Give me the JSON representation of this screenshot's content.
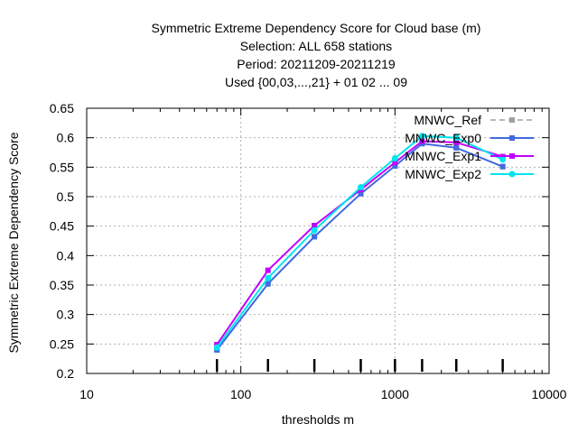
{
  "chart_data": {
    "type": "line",
    "title_lines": [
      "Symmetric Extreme Dependency Score  for Cloud base (m)",
      "Selection: ALL    658 stations",
      "Period: 20211209-20211219",
      "Used {00,03,...,21} + 01 02 ... 09"
    ],
    "xlabel": "thresholds m",
    "ylabel": "Symmetric Extreme Dependency Score",
    "x_scale": "log",
    "xlim": [
      10,
      10000
    ],
    "ylim": [
      0.2,
      0.65
    ],
    "x_ticks": [
      10,
      100,
      1000,
      10000
    ],
    "x_tick_labels": [
      "10",
      "100",
      "1000",
      "10000"
    ],
    "y_ticks": [
      0.2,
      0.25,
      0.3,
      0.35,
      0.4,
      0.45,
      0.5,
      0.55,
      0.6,
      0.65
    ],
    "y_tick_labels": [
      "0.2",
      "0.25",
      "0.3",
      "0.35",
      "0.4",
      "0.45",
      "0.5",
      "0.55",
      "0.6",
      "0.65"
    ],
    "grid": true,
    "legend_position": "top-right",
    "threshold_markers": [
      70,
      150,
      300,
      600,
      1000,
      1500,
      2500,
      5000
    ],
    "x": [
      70,
      150,
      300,
      600,
      1000,
      1500,
      2500,
      5000
    ],
    "series": [
      {
        "name": "MNWC_Ref",
        "color": "#a0a0a0",
        "dash": "dashed",
        "values": [
          0.24,
          0.353,
          0.432,
          0.505,
          0.552,
          0.59,
          0.583,
          0.551
        ]
      },
      {
        "name": "MNWC_Exp0",
        "color": "#4169e1",
        "dash": "solid",
        "values": [
          0.24,
          0.352,
          0.432,
          0.505,
          0.552,
          0.59,
          0.583,
          0.551
        ]
      },
      {
        "name": "MNWC_Exp1",
        "color": "#c000ff",
        "dash": "solid",
        "values": [
          0.249,
          0.375,
          0.451,
          0.512,
          0.558,
          0.594,
          0.592,
          0.568
        ]
      },
      {
        "name": "MNWC_Exp2",
        "color": "#00e5ee",
        "dash": "solid",
        "values": [
          0.244,
          0.362,
          0.443,
          0.516,
          0.565,
          0.603,
          0.6,
          0.563
        ]
      }
    ]
  }
}
